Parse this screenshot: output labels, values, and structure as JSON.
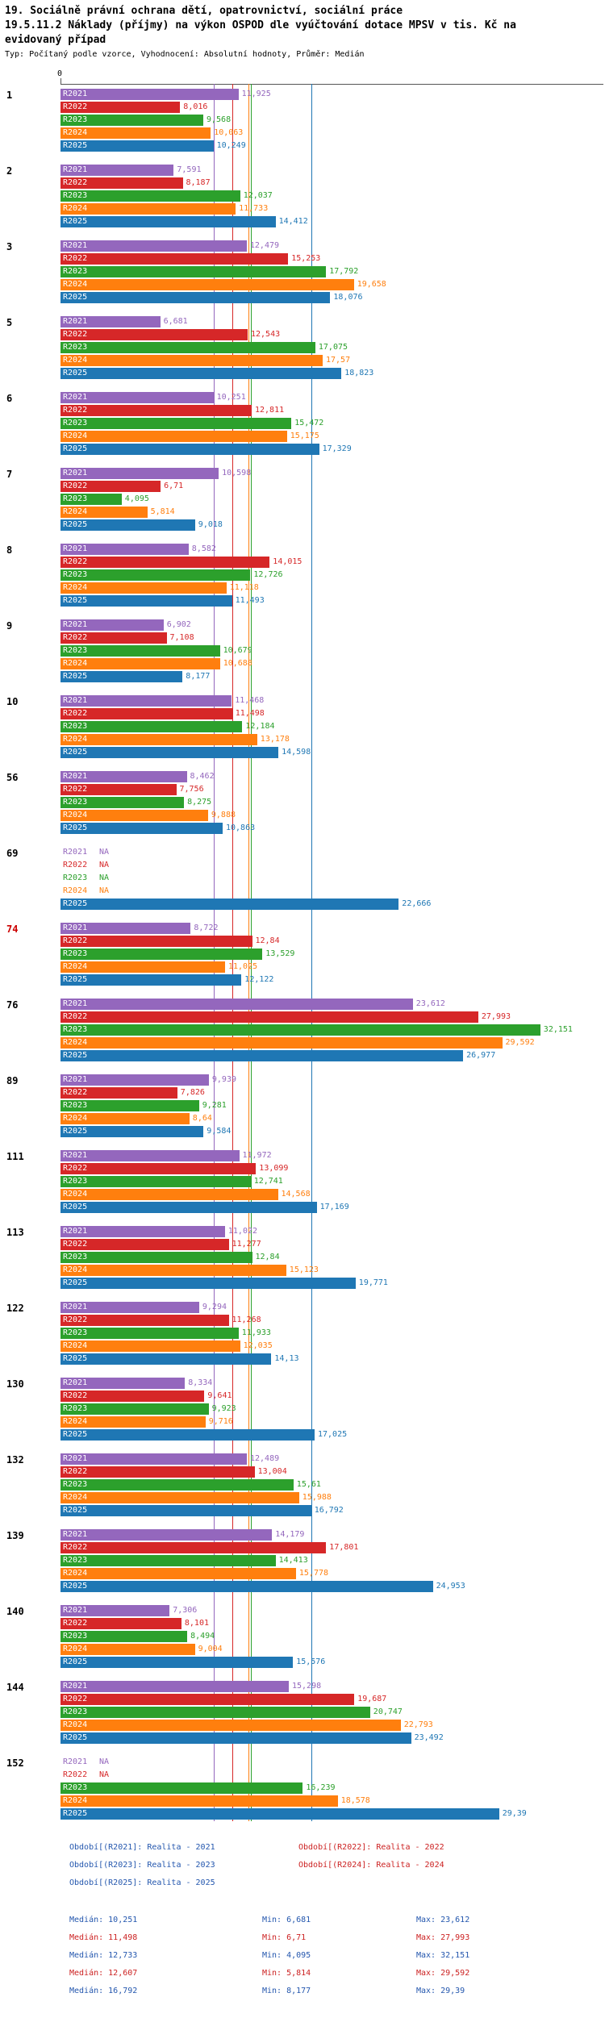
{
  "header": {
    "title_line1": "19. Sociálně právní ochrana dětí, opatrovnictví, sociální práce",
    "title_line2": "19.5.11.2 Náklady (příjmy) na výkon OSPOD dle vyúčtování dotace MPSV v tis. Kč na",
    "title_line3": "evidovaný případ",
    "subtitle": "Typ: Počítaný podle vzorce, Vyhodnocení: Absolutní hodnoty, Průměr: Medián"
  },
  "axis": {
    "zero_label": "0"
  },
  "colors": {
    "r2021": "#9467bd",
    "r2022": "#d62728",
    "r2023": "#2ca02c",
    "r2024": "#ff7f0e",
    "r2025": "#1f77b4",
    "blue_text": "#2457ae",
    "red_text": "#cc2222",
    "highlight_category": "#cc0000",
    "axis": "#555555"
  },
  "chart_data": {
    "type": "bar",
    "orientation": "horizontal",
    "value_unit": "tis. Kč na evidovaný případ",
    "na_text": "NA",
    "series": [
      {
        "key": "R2021",
        "color": "#9467bd",
        "median": 10.251
      },
      {
        "key": "R2022",
        "color": "#d62728",
        "median": 11.498
      },
      {
        "key": "R2023",
        "color": "#2ca02c",
        "median": 12.733
      },
      {
        "key": "R2024",
        "color": "#ff7f0e",
        "median": 12.607
      },
      {
        "key": "R2025",
        "color": "#1f77b4",
        "median": 16.792
      }
    ],
    "highlighted_categories": [
      "74"
    ],
    "categories": [
      "1",
      "2",
      "3",
      "5",
      "6",
      "7",
      "8",
      "9",
      "10",
      "56",
      "69",
      "74",
      "76",
      "89",
      "111",
      "113",
      "122",
      "130",
      "132",
      "139",
      "140",
      "144",
      "152"
    ],
    "groups": [
      {
        "label": "1",
        "values": [
          "11,925",
          "8,016",
          "9,568",
          "10,063",
          "10,249"
        ]
      },
      {
        "label": "2",
        "values": [
          "7,591",
          "8,187",
          "12,037",
          "11,733",
          "14,412"
        ]
      },
      {
        "label": "3",
        "values": [
          "12,479",
          "15,253",
          "17,792",
          "19,658",
          "18,076"
        ]
      },
      {
        "label": "5",
        "values": [
          "6,681",
          "12,543",
          "17,075",
          "17,57",
          "18,823"
        ]
      },
      {
        "label": "6",
        "values": [
          "10,251",
          "12,811",
          "15,472",
          "15,175",
          "17,329"
        ]
      },
      {
        "label": "7",
        "values": [
          "10,598",
          "6,71",
          "4,095",
          "5,814",
          "9,018"
        ]
      },
      {
        "label": "8",
        "values": [
          "8,582",
          "14,015",
          "12,726",
          "11,118",
          "11,493"
        ]
      },
      {
        "label": "9",
        "values": [
          "6,902",
          "7,108",
          "10,679",
          "10,688",
          "8,177"
        ]
      },
      {
        "label": "10",
        "values": [
          "11,468",
          "11,498",
          "12,184",
          "13,178",
          "14,598"
        ]
      },
      {
        "label": "56",
        "values": [
          "8,462",
          "7,756",
          "8,275",
          "9,888",
          "10,863"
        ]
      },
      {
        "label": "69",
        "values": [
          "NA",
          "NA",
          "NA",
          "NA",
          "22,666"
        ]
      },
      {
        "label": "74",
        "values": [
          "8,722",
          "12,84",
          "13,529",
          "11,025",
          "12,122"
        ]
      },
      {
        "label": "76",
        "values": [
          "23,612",
          "27,993",
          "32,151",
          "29,592",
          "26,977"
        ]
      },
      {
        "label": "89",
        "values": [
          "9,939",
          "7,826",
          "9,281",
          "8,64",
          "9,584"
        ]
      },
      {
        "label": "111",
        "values": [
          "11,972",
          "13,099",
          "12,741",
          "14,568",
          "17,169"
        ]
      },
      {
        "label": "113",
        "values": [
          "11,022",
          "11,277",
          "12,84",
          "15,123",
          "19,771"
        ]
      },
      {
        "label": "122",
        "values": [
          "9,294",
          "11,268",
          "11,933",
          "12,035",
          "14,13"
        ]
      },
      {
        "label": "130",
        "values": [
          "8,334",
          "9,641",
          "9,923",
          "9,716",
          "17,025"
        ]
      },
      {
        "label": "132",
        "values": [
          "12,489",
          "13,004",
          "15,61",
          "15,988",
          "16,792"
        ]
      },
      {
        "label": "139",
        "values": [
          "14,179",
          "17,801",
          "14,413",
          "15,778",
          "24,953"
        ]
      },
      {
        "label": "140",
        "values": [
          "7,306",
          "8,101",
          "8,494",
          "9,004",
          "15,576"
        ]
      },
      {
        "label": "144",
        "values": [
          "15,298",
          "19,687",
          "20,747",
          "22,793",
          "23,492"
        ]
      },
      {
        "label": "152",
        "values": [
          "NA",
          "NA",
          "16,239",
          "18,578",
          "29,39"
        ]
      }
    ]
  },
  "legend": {
    "items": [
      {
        "label": "Období[(R2021]: Realita - 2021",
        "color": "blue_text"
      },
      {
        "label": "Období[(R2022]: Realita - 2022",
        "color": "red_text"
      },
      {
        "label": "Období[(R2023]: Realita - 2023",
        "color": "blue_text"
      },
      {
        "label": "Období[(R2024]: Realita - 2024",
        "color": "red_text"
      },
      {
        "label": "Období[(R2025]: Realita - 2025",
        "color": "blue_text"
      }
    ]
  },
  "stats": {
    "rows": [
      {
        "median": "Medián: 10,251",
        "min": "Min: 6,681",
        "max": "Max: 23,612",
        "color": "blue_text"
      },
      {
        "median": "Medián: 11,498",
        "min": "Min: 6,71",
        "max": "Max: 27,993",
        "color": "red_text"
      },
      {
        "median": "Medián: 12,733",
        "min": "Min: 4,095",
        "max": "Max: 32,151",
        "color": "blue_text"
      },
      {
        "median": "Medián: 12,607",
        "min": "Min: 5,814",
        "max": "Max: 29,592",
        "color": "red_text"
      },
      {
        "median": "Medián: 16,792",
        "min": "Min: 8,177",
        "max": "Max: 29,39",
        "color": "blue_text"
      }
    ]
  }
}
